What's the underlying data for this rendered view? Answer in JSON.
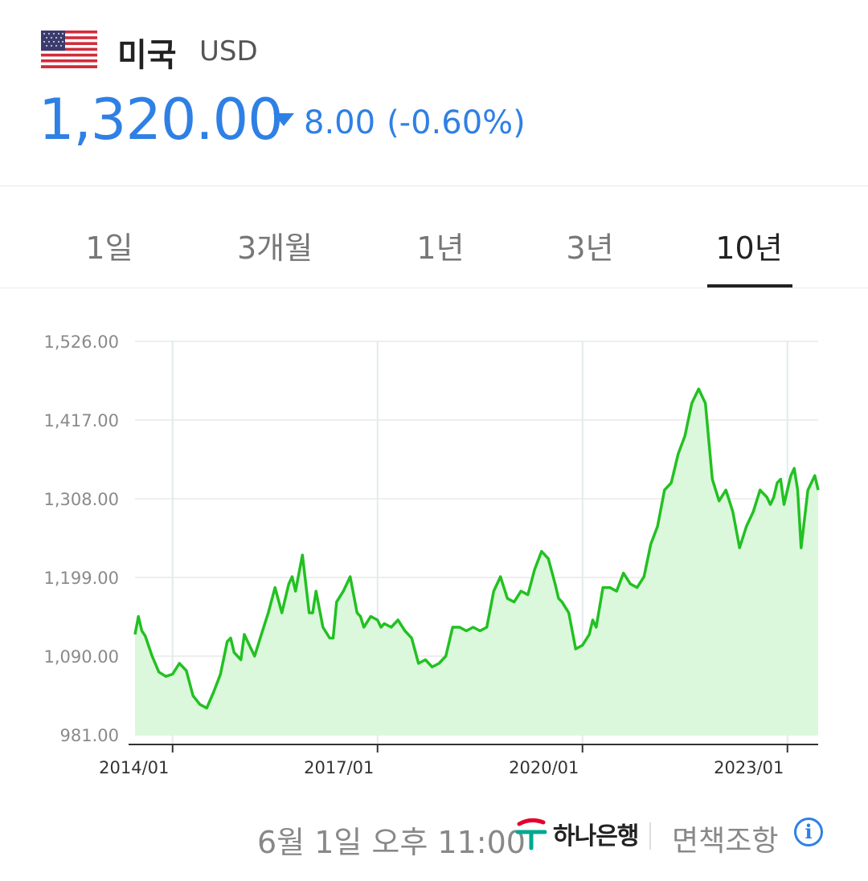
{
  "header": {
    "country": "미국",
    "currency": "USD",
    "rate": "1,320.00",
    "change_amount": "8.00",
    "change_percent": "(-0.60%)",
    "change_direction": "down",
    "accent_color": "#2f80e4"
  },
  "tabs": [
    {
      "label": "1일",
      "active": false
    },
    {
      "label": "3개월",
      "active": false
    },
    {
      "label": "1년",
      "active": false
    },
    {
      "label": "3년",
      "active": false
    },
    {
      "label": "10년",
      "active": true
    }
  ],
  "chart_data": {
    "type": "area",
    "title": "",
    "xlabel": "",
    "ylabel": "",
    "line_color": "#22c122",
    "fill_color": "#dcf8dc",
    "ylim": [
      981,
      1526
    ],
    "y_ticks": [
      "1,526.00",
      "1,417.00",
      "1,308.00",
      "1,199.00",
      "1,090.00",
      "981.00"
    ],
    "y_tick_values": [
      1526,
      1417,
      1308,
      1199,
      1090,
      981
    ],
    "x_ticks": [
      "2014/01",
      "2017/01",
      "2020/01",
      "2023/01"
    ],
    "x_tick_values": [
      2014.0,
      2017.0,
      2020.0,
      2023.0
    ],
    "xlim": [
      2013.45,
      2023.45
    ],
    "grid": true,
    "series": [
      {
        "x": [
          2013.45,
          2013.5,
          2013.55,
          2013.6,
          2013.7,
          2013.8,
          2013.9,
          2014.0,
          2014.1,
          2014.2,
          2014.3,
          2014.4,
          2014.5,
          2014.6,
          2014.7,
          2014.8,
          2014.85,
          2014.9,
          2015.0,
          2015.05,
          2015.1,
          2015.2,
          2015.3,
          2015.4,
          2015.5,
          2015.6,
          2015.7,
          2015.75,
          2015.8,
          2015.9,
          2016.0,
          2016.05,
          2016.1,
          2016.2,
          2016.3,
          2016.35,
          2016.4,
          2016.5,
          2016.6,
          2016.7,
          2016.75,
          2016.8,
          2016.9,
          2017.0,
          2017.05,
          2017.1,
          2017.2,
          2017.3,
          2017.4,
          2017.5,
          2017.6,
          2017.7,
          2017.8,
          2017.9,
          2018.0,
          2018.1,
          2018.2,
          2018.3,
          2018.4,
          2018.5,
          2018.6,
          2018.7,
          2018.8,
          2018.9,
          2019.0,
          2019.1,
          2019.2,
          2019.3,
          2019.4,
          2019.5,
          2019.6,
          2019.65,
          2019.7,
          2019.8,
          2019.9,
          2020.0,
          2020.1,
          2020.15,
          2020.2,
          2020.3,
          2020.4,
          2020.5,
          2020.6,
          2020.7,
          2020.8,
          2020.9,
          2021.0,
          2021.1,
          2021.2,
          2021.3,
          2021.4,
          2021.5,
          2021.6,
          2021.7,
          2021.8,
          2021.9,
          2022.0,
          2022.1,
          2022.2,
          2022.3,
          2022.4,
          2022.5,
          2022.6,
          2022.7,
          2022.75,
          2022.8,
          2022.85,
          2022.9,
          2022.95,
          2023.0,
          2023.05,
          2023.1,
          2023.15,
          2023.2,
          2023.3,
          2023.4,
          2023.45
        ],
        "y": [
          1120,
          1145,
          1125,
          1118,
          1090,
          1068,
          1062,
          1065,
          1080,
          1070,
          1035,
          1023,
          1018,
          1040,
          1065,
          1110,
          1115,
          1095,
          1085,
          1120,
          1110,
          1090,
          1120,
          1150,
          1185,
          1150,
          1190,
          1200,
          1180,
          1230,
          1150,
          1150,
          1180,
          1130,
          1115,
          1115,
          1165,
          1180,
          1200,
          1150,
          1145,
          1130,
          1145,
          1140,
          1130,
          1135,
          1130,
          1140,
          1125,
          1115,
          1080,
          1085,
          1075,
          1080,
          1090,
          1130,
          1130,
          1125,
          1130,
          1125,
          1130,
          1180,
          1200,
          1170,
          1165,
          1180,
          1175,
          1210,
          1235,
          1225,
          1190,
          1170,
          1165,
          1150,
          1100,
          1105,
          1120,
          1140,
          1130,
          1185,
          1185,
          1180,
          1205,
          1190,
          1185,
          1200,
          1245,
          1270,
          1320,
          1330,
          1370,
          1395,
          1440,
          1460,
          1440,
          1335,
          1305,
          1320,
          1290,
          1240,
          1270,
          1290,
          1320,
          1310,
          1300,
          1310,
          1330,
          1335,
          1300,
          1320,
          1340,
          1350,
          1320,
          1240,
          1320,
          1340,
          1320
        ]
      }
    ]
  },
  "footer": {
    "timestamp": "6월 1일 오후 11:00",
    "bank_name": "하나은행",
    "disclaimer": "면책조항"
  }
}
